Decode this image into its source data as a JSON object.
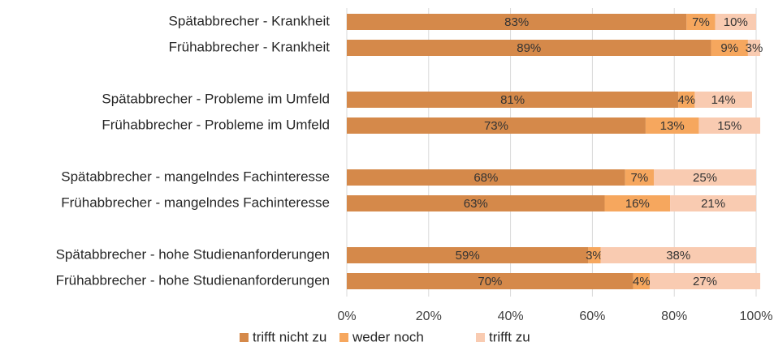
{
  "chart_data": {
    "type": "stacked_bar_horizontal",
    "categories": [
      "Spätabbrecher - Krankheit",
      "Frühabbrecher - Krankheit",
      "Spätabbrecher - Probleme im Umfeld",
      "Frühabbrecher - Probleme im Umfeld",
      "Spätabbrecher - mangelndes Fachinteresse",
      "Frühabbrecher - mangelndes Fachinteresse",
      "Spätabbrecher - hohe Studienanforderungen",
      "Frühabbrecher - hohe Studienanforderungen"
    ],
    "series": [
      {
        "name": "trifft nicht zu",
        "color": "#d5894a",
        "values": [
          83,
          89,
          81,
          73,
          68,
          63,
          59,
          70
        ],
        "value_labels": [
          "83%",
          "89%",
          "81%",
          "73%",
          "68%",
          "63%",
          "59%",
          "70%"
        ]
      },
      {
        "name": "weder noch",
        "color": "#f6a75e",
        "values": [
          7,
          9,
          4,
          13,
          7,
          16,
          3,
          4
        ],
        "value_labels": [
          "7%",
          "9%",
          "4%",
          "13%",
          "7%",
          "16%",
          "3%",
          "4%"
        ]
      },
      {
        "name": "trifft zu",
        "color": "#f9cbb1",
        "values": [
          10,
          3,
          14,
          15,
          25,
          21,
          38,
          27
        ],
        "value_labels": [
          "10%",
          "3%",
          "14%",
          "15%",
          "25%",
          "21%",
          "38%",
          "27%"
        ]
      }
    ],
    "xlim": [
      0,
      100
    ],
    "xticks": [
      {
        "value": 0,
        "label": "0%"
      },
      {
        "value": 20,
        "label": "20%"
      },
      {
        "value": 40,
        "label": "40%"
      },
      {
        "value": 60,
        "label": "60%"
      },
      {
        "value": 80,
        "label": "80%"
      },
      {
        "value": 100,
        "label": "100%"
      }
    ],
    "grid": true,
    "legend": "bottom"
  }
}
